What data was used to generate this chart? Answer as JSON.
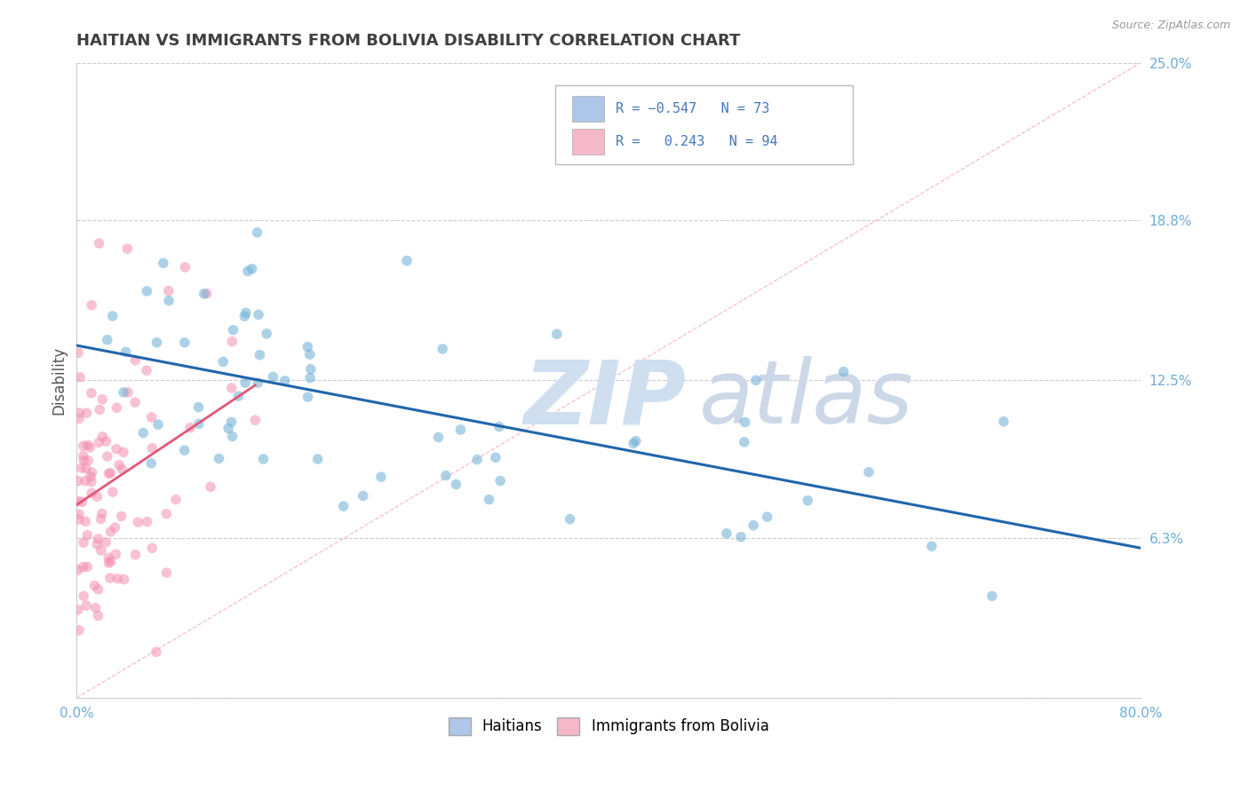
{
  "title": "HAITIAN VS IMMIGRANTS FROM BOLIVIA DISABILITY CORRELATION CHART",
  "source": "Source: ZipAtlas.com",
  "ylabel": "Disability",
  "x_min": 0.0,
  "x_max": 0.8,
  "y_min": 0.0,
  "y_max": 0.25,
  "y_ticks_right": [
    0.25,
    0.188,
    0.125,
    0.063
  ],
  "y_tick_labels_right": [
    "25.0%",
    "18.8%",
    "12.5%",
    "6.3%"
  ],
  "R_haitians": -0.547,
  "N_haitians": 73,
  "R_bolivia": 0.243,
  "N_bolivia": 94,
  "color_haitians": "#6baed6",
  "color_bolivia": "#f48fb1",
  "color_line_haitians": "#2166ac",
  "color_line_bolivia": "#e05878",
  "color_diag_line": "#f4a0b8",
  "background_color": "#ffffff",
  "grid_color": "#cccccc",
  "title_color": "#404040",
  "axis_label_color": "#6baed6",
  "legend_box_color_haitians": "#aec6e8",
  "legend_box_color_bolivia": "#f4b8c8",
  "legend_text_color": "#4477bb",
  "watermark_zip_color": "#d0dff0",
  "watermark_atlas_color": "#ccd8e8"
}
